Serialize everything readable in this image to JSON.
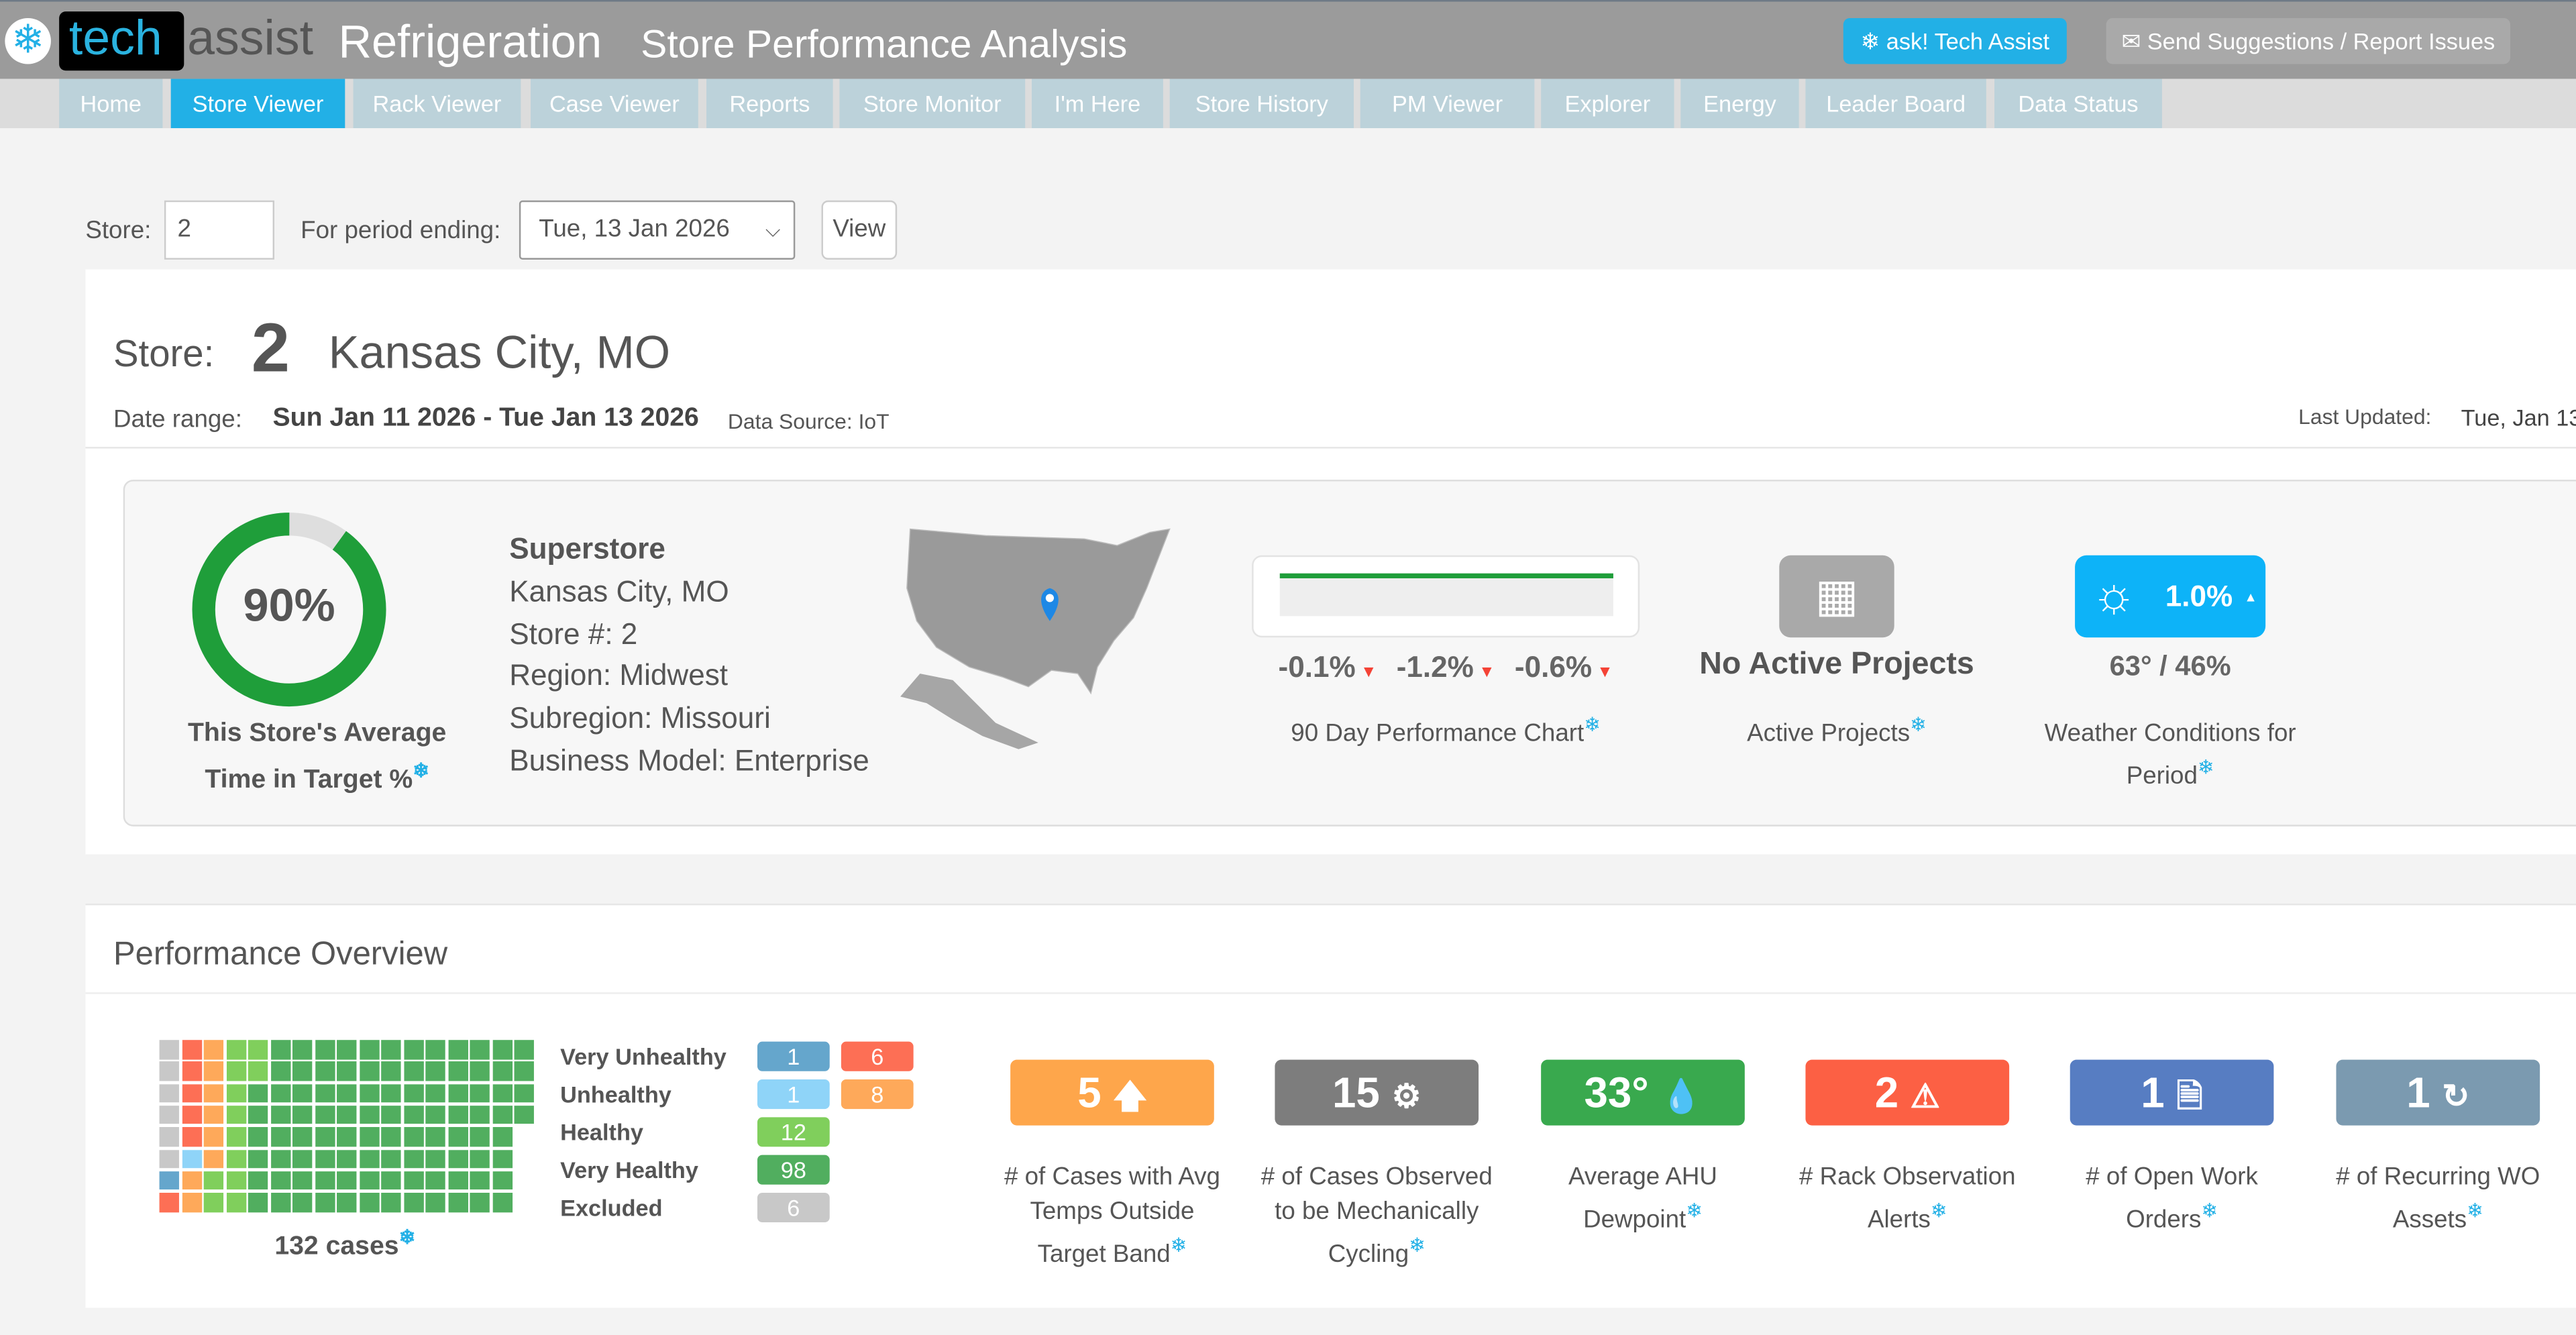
{
  "header": {
    "logo_tech": "tech",
    "logo_assist": "assist",
    "product": "Refrigeration",
    "title": "Store Performance Analysis",
    "ask_button": "ask! Tech Assist",
    "send_button": "Send Suggestions / Report Issues"
  },
  "nav": {
    "tabs": [
      "Home",
      "Store Viewer",
      "Rack Viewer",
      "Case Viewer",
      "Reports",
      "Store Monitor",
      "I'm Here",
      "Store History",
      "PM Viewer",
      "Explorer",
      "Energy",
      "Leader Board",
      "Data Status"
    ],
    "active": "Store Viewer"
  },
  "filters": {
    "store_label": "Store:",
    "store_value": "2",
    "period_label": "For period ending:",
    "period_value": "Tue, 13 Jan 2026",
    "view_button": "View"
  },
  "store": {
    "label": "Store:",
    "number": "2",
    "city": "Kansas City, MO",
    "date_range_label": "Date range:",
    "date_range": "Sun Jan 11 2026 - Tue Jan 13 2026",
    "data_source": "Data Source: IoT",
    "last_updated_label": "Last Updated:",
    "last_updated": "Tue, Jan 13"
  },
  "summary": {
    "time_in_target": {
      "value": "90%",
      "percent": 90,
      "caption_line1": "This Store's Average",
      "caption_line2": "Time in Target %",
      "color": "#1f9e3a"
    },
    "details": {
      "type": "Superstore",
      "city": "Kansas City, MO",
      "store_no": "Store #: 2",
      "region": "Region: Midwest",
      "subregion": "Subregion: Missouri",
      "business_model": "Business Model: Enterprise"
    },
    "performance": {
      "changes": [
        "-0.1%",
        "-1.2%",
        "-0.6%"
      ],
      "trend": "down",
      "caption": "90 Day Performance Chart"
    },
    "projects": {
      "value": "No Active Projects",
      "caption": "Active Projects",
      "icon": "calendar-icon"
    },
    "weather": {
      "badge": "1.0%",
      "trend": "up",
      "temps": "63° / 46%",
      "caption_line1": "Weather Conditions for",
      "caption_line2": "Period",
      "icon": "sun-icon"
    }
  },
  "overview": {
    "title": "Performance Overview",
    "cases_total": "132 cases",
    "legend": [
      {
        "label": "Very Unhealthy",
        "badges": [
          {
            "value": "1",
            "color": "#65a6cc"
          },
          {
            "value": "6",
            "color": "#fd6f55"
          }
        ]
      },
      {
        "label": "Unhealthy",
        "badges": [
          {
            "value": "1",
            "color": "#8fd4f8"
          },
          {
            "value": "8",
            "color": "#fea95a"
          }
        ]
      },
      {
        "label": "Healthy",
        "badges": [
          {
            "value": "12",
            "color": "#80cf5c"
          }
        ]
      },
      {
        "label": "Very Healthy",
        "badges": [
          {
            "value": "98",
            "color": "#51ae5f"
          }
        ]
      },
      {
        "label": "Excluded",
        "badges": [
          {
            "value": "6",
            "color": "#c8c8c8"
          }
        ]
      }
    ],
    "grid_order": [
      {
        "count": 6,
        "color": "#c8c8c8"
      },
      {
        "count": 1,
        "color": "#65a6cc"
      },
      {
        "count": 6,
        "color": "#fd6f55"
      },
      {
        "count": 1,
        "color": "#8fd4f8"
      },
      {
        "count": 8,
        "color": "#fea95a"
      },
      {
        "count": 12,
        "color": "#80cf5c"
      },
      {
        "count": 98,
        "color": "#51ae5f"
      }
    ],
    "kpis": [
      {
        "value": "5",
        "icon": "arrow-up-icon",
        "glyph": "🡅",
        "color": "#fea64b",
        "caption": [
          "# of Cases with Avg",
          "Temps Outside",
          "Target Band"
        ]
      },
      {
        "value": "15",
        "icon": "gear-icon",
        "glyph": "⚙",
        "color": "#7d7d7d",
        "caption": [
          "# of Cases Observed",
          "to be Mechanically",
          "Cycling"
        ]
      },
      {
        "value": "33°",
        "icon": "droplet-icon",
        "glyph": "💧",
        "color": "#39a94e",
        "caption": [
          "Average AHU",
          "Dewpoint"
        ]
      },
      {
        "value": "2",
        "icon": "warning-icon",
        "glyph": "⚠",
        "color": "#fc6044",
        "caption": [
          "# Rack Observation",
          "Alerts"
        ]
      },
      {
        "value": "1",
        "icon": "document-icon",
        "glyph": "🗎",
        "color": "#577dc2",
        "caption": [
          "# of Open Work",
          "Orders"
        ]
      },
      {
        "value": "1",
        "icon": "recurring-icon",
        "glyph": "↻",
        "color": "#7b9ab0",
        "caption": [
          "# of Recurring WO",
          "Assets"
        ]
      }
    ]
  }
}
